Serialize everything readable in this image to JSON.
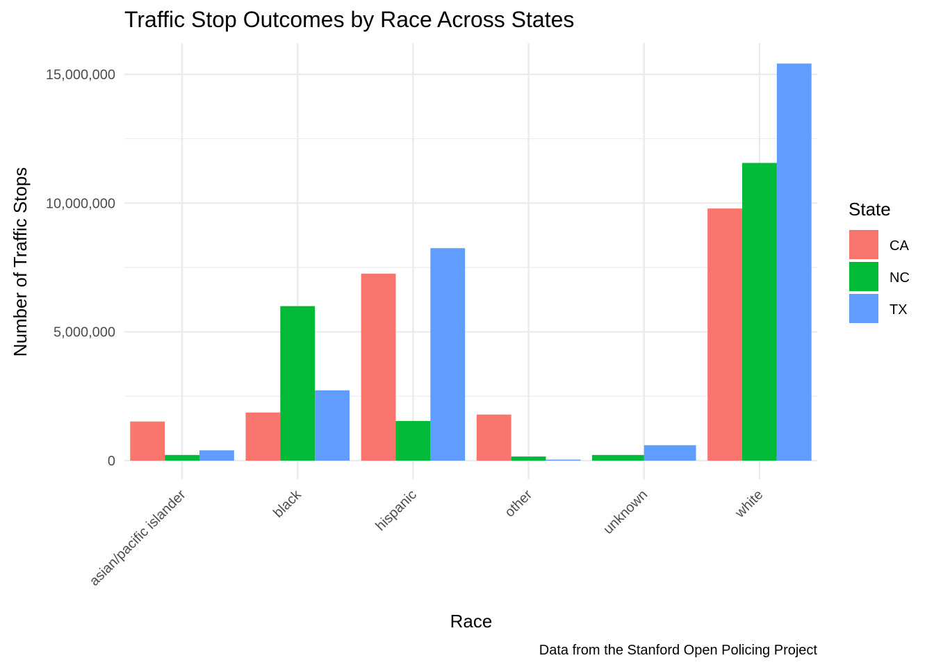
{
  "chart_data": {
    "type": "bar",
    "title": "Traffic Stop Outcomes by Race Across States",
    "xlabel": "Race",
    "ylabel": "Number of Traffic Stops",
    "caption": "Data from the Stanford Open Policing Project",
    "legend_title": "State",
    "legend_position": "right",
    "grid": true,
    "categories": [
      "asian/pacific islander",
      "black",
      "hispanic",
      "other",
      "unknown",
      "white"
    ],
    "ylim": [
      0,
      16200000
    ],
    "yticks": [
      0,
      5000000,
      10000000,
      15000000
    ],
    "ytick_labels": [
      "0",
      "5,000,000",
      "10,000,000",
      "15,000,000"
    ],
    "series": [
      {
        "name": "CA",
        "color": "#F8766D",
        "values": [
          1520000,
          1870000,
          7260000,
          1790000,
          null,
          9790000
        ]
      },
      {
        "name": "NC",
        "color": "#00BA38",
        "values": [
          220000,
          6000000,
          1540000,
          160000,
          220000,
          11560000
        ]
      },
      {
        "name": "TX",
        "color": "#619CFF",
        "values": [
          400000,
          2730000,
          8250000,
          40000,
          600000,
          15420000
        ]
      }
    ]
  }
}
